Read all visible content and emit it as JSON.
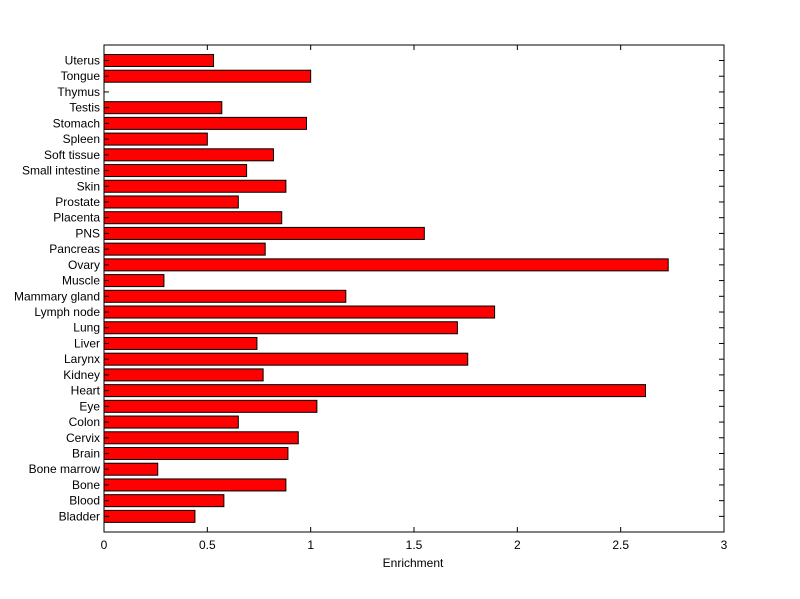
{
  "chart_data": {
    "type": "bar",
    "orientation": "horizontal",
    "title": "",
    "xlabel": "Enrichment",
    "ylabel": "",
    "xlim": [
      0,
      3
    ],
    "xticks": [
      0,
      0.5,
      1,
      1.5,
      2,
      2.5,
      3
    ],
    "xtick_labels": [
      "0",
      "0.5",
      "1",
      "1.5",
      "2",
      "2.5",
      "3"
    ],
    "grid": false,
    "bar_color": "#ff0000",
    "bar_edge_color": "#000000",
    "categories": [
      "Uterus",
      "Tongue",
      "Thymus",
      "Testis",
      "Stomach",
      "Spleen",
      "Soft tissue",
      "Small intestine",
      "Skin",
      "Prostate",
      "Placenta",
      "PNS",
      "Pancreas",
      "Ovary",
      "Muscle",
      "Mammary gland",
      "Lymph node",
      "Lung",
      "Liver",
      "Larynx",
      "Kidney",
      "Heart",
      "Eye",
      "Colon",
      "Cervix",
      "Brain",
      "Bone marrow",
      "Bone",
      "Blood",
      "Bladder"
    ],
    "values": [
      0.53,
      1.0,
      0.0,
      0.57,
      0.98,
      0.5,
      0.82,
      0.69,
      0.88,
      0.65,
      0.86,
      1.55,
      0.78,
      2.73,
      0.29,
      1.17,
      1.89,
      1.71,
      0.74,
      1.76,
      0.77,
      2.62,
      1.03,
      0.65,
      0.94,
      0.89,
      0.26,
      0.88,
      0.58,
      0.44
    ]
  }
}
